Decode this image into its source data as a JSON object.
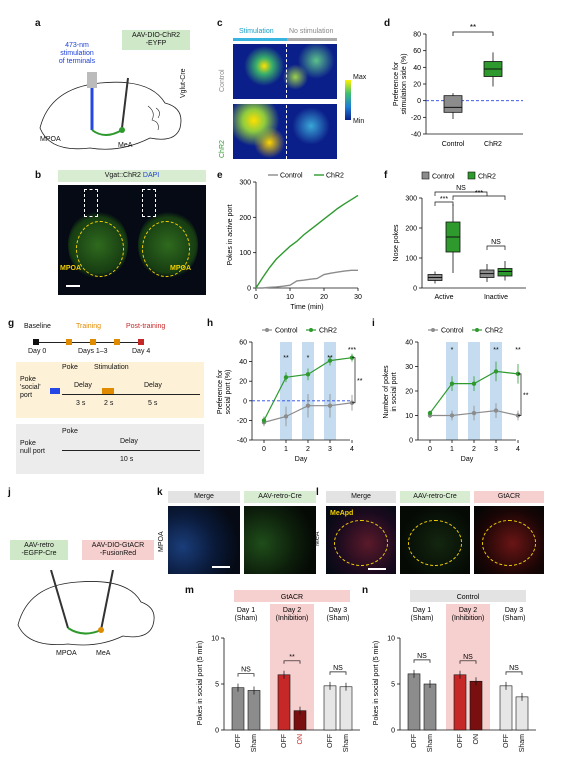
{
  "panel_letters": [
    "a",
    "b",
    "c",
    "d",
    "e",
    "f",
    "g",
    "h",
    "i",
    "j",
    "k",
    "l",
    "m",
    "n"
  ],
  "a": {
    "stim_label": "473-nm\nstimulation\nof terminals",
    "virus": "AAV-DIO-ChR2\n-EYFP",
    "mouse": "Vglut-Cre",
    "mpoa": "MPOA",
    "mea": "MeA"
  },
  "b": {
    "header_a": "Vgat::ChR2",
    "header_b": "DAPI",
    "left": "MPOA",
    "right": "MPOA"
  },
  "c": {
    "stim": "Stimulation",
    "nostim": "No stimulation",
    "row1": "Control",
    "row2": "ChR2",
    "cb_max": "Max",
    "cb_min": "Min"
  },
  "d": {
    "ylabel": "Preference for\nstimulation side (%)",
    "sig": "**",
    "colors": {
      "control": "#8c8c8c",
      "chr2": "#2e9a2e"
    }
  },
  "e": {
    "ylabel": "Pokes in active port",
    "xlabel": "Time (min)"
  },
  "f": {
    "ylabel": "Nose pokes",
    "legend": [
      "Control",
      "ChR2"
    ],
    "sig": [
      "NS",
      "***",
      "***",
      "NS"
    ],
    "groups": [
      "Active",
      "Inactive"
    ]
  },
  "g": {
    "baseline": "Baseline",
    "training": "Training",
    "post": "Post-training",
    "day0": "Day 0",
    "days13": "Days 1–3",
    "day4": "Day 4",
    "poke": "Poke",
    "stimulation": "Stimulation",
    "delay": "Delay",
    "social_port": "Poke\n'social'\nport",
    "null_port": "Poke\nnull port",
    "t3": "3 s",
    "t2": "2 s",
    "t5": "5 s",
    "t10": "10 s"
  },
  "h": {
    "ylabel": "Preference for\nsocial port (%)",
    "xlabel": "Day",
    "legend": [
      "Control",
      "ChR2"
    ],
    "sig": [
      "**",
      "*",
      "**",
      "***"
    ],
    "side_sig": "**"
  },
  "i": {
    "ylabel": "Number of pokes\nin social port",
    "xlabel": "Day",
    "legend": [
      "Control",
      "ChR2"
    ],
    "sig": [
      "*",
      "**",
      "**"
    ],
    "side_sig": "**"
  },
  "j": {
    "virus1": "AAV-retro\n-EGFP-Cre",
    "virus2": "AAV-DIO-GtACR\n-FusionRed",
    "mpoa": "MPOA",
    "mea": "MeA"
  },
  "k": {
    "merge": "Merge",
    "channel": "AAV-retro-Cre",
    "region": "MPOA"
  },
  "l": {
    "merge": "Merge",
    "channel1": "AAV-retro-Cre",
    "channel2": "GtACR",
    "region": "MeA",
    "sub": "MeApd"
  },
  "m": {
    "title": "GtACR",
    "ylabel": "Pokes in social port (5 min)",
    "days": [
      "Day 1\n(Sham)",
      "Day 2\n(Inhibition)",
      "Day 3\n(Sham)"
    ],
    "xticks": [
      "OFF",
      "Sham",
      "OFF",
      "ON",
      "OFF",
      "Sham"
    ],
    "sig": [
      "NS",
      "**",
      "NS"
    ]
  },
  "n": {
    "title": "Control",
    "ylabel": "Pokes in social port (5 min)",
    "days": [
      "Day 1\n(Sham)",
      "Day 2\n(Inhibition)",
      "Day 3\n(Sham)"
    ],
    "xticks": [
      "OFF",
      "Sham",
      "OFF",
      "ON",
      "OFF",
      "Sham"
    ],
    "sig": [
      "NS",
      "NS",
      "NS"
    ]
  },
  "chart_data": [
    {
      "panel": "d",
      "type": "box",
      "categories": [
        "Control",
        "ChR2"
      ],
      "boxes": [
        {
          "min": -22,
          "q1": -14,
          "median": -8,
          "q3": 6,
          "max": 9
        },
        {
          "min": 17,
          "q1": 29,
          "median": 38,
          "q3": 47,
          "max": 58
        }
      ],
      "ylim": [
        -40,
        80
      ],
      "yticks": [
        -40,
        -20,
        0,
        20,
        40,
        60,
        80
      ]
    },
    {
      "panel": "e",
      "type": "line",
      "xlim": [
        0,
        30
      ],
      "ylim": [
        0,
        300
      ],
      "xticks": [
        0,
        10,
        20,
        30
      ],
      "yticks": [
        0,
        100,
        200,
        300
      ],
      "series": [
        {
          "name": "Control",
          "x": [
            0,
            2,
            4,
            6,
            8,
            10,
            12,
            14,
            16,
            18,
            20,
            22,
            24,
            26,
            28,
            30
          ],
          "y": [
            0,
            0,
            2,
            3,
            5,
            8,
            20,
            22,
            25,
            27,
            38,
            42,
            45,
            48,
            50,
            50
          ]
        },
        {
          "name": "ChR2",
          "x": [
            0,
            2,
            4,
            6,
            8,
            10,
            12,
            14,
            16,
            18,
            20,
            22,
            24,
            26,
            28,
            30
          ],
          "y": [
            0,
            30,
            58,
            82,
            100,
            118,
            132,
            150,
            165,
            180,
            195,
            210,
            225,
            238,
            250,
            262
          ]
        }
      ]
    },
    {
      "panel": "f",
      "type": "box",
      "categories": [
        "Active",
        "Inactive"
      ],
      "ylim": [
        0,
        300
      ],
      "yticks": [
        0,
        100,
        200,
        300
      ],
      "series": [
        {
          "name": "Control",
          "boxes": [
            {
              "min": 15,
              "q1": 25,
              "median": 35,
              "q3": 45,
              "max": 55
            },
            {
              "min": 20,
              "q1": 35,
              "median": 48,
              "q3": 60,
              "max": 80
            }
          ]
        },
        {
          "name": "ChR2",
          "boxes": [
            {
              "min": 50,
              "q1": 120,
              "median": 170,
              "q3": 220,
              "max": 280
            },
            {
              "min": 25,
              "q1": 40,
              "median": 55,
              "q3": 65,
              "max": 90
            }
          ]
        }
      ]
    },
    {
      "panel": "h",
      "type": "line",
      "x": [
        0,
        1,
        2,
        3,
        4
      ],
      "ylim": [
        -40,
        60
      ],
      "yticks": [
        -40,
        -20,
        0,
        20,
        40,
        60
      ],
      "series": [
        {
          "name": "Control",
          "y": [
            -22,
            -16,
            -5,
            -5,
            -2
          ],
          "err": [
            4,
            10,
            12,
            12,
            8
          ]
        },
        {
          "name": "ChR2",
          "y": [
            -20,
            24,
            27,
            41,
            44
          ],
          "err": [
            4,
            5,
            6,
            5,
            4
          ]
        }
      ]
    },
    {
      "panel": "i",
      "type": "line",
      "x": [
        0,
        1,
        2,
        3,
        4
      ],
      "ylim": [
        0,
        40
      ],
      "yticks": [
        0,
        10,
        20,
        30,
        40
      ],
      "series": [
        {
          "name": "Control",
          "y": [
            10,
            10,
            11,
            12,
            10
          ],
          "err": [
            1,
            2,
            3,
            3,
            2
          ]
        },
        {
          "name": "ChR2",
          "y": [
            11,
            23,
            23,
            28,
            27
          ],
          "err": [
            1,
            3,
            3,
            4,
            4
          ]
        }
      ]
    },
    {
      "panel": "m",
      "type": "bar",
      "categories": [
        "OFF",
        "Sham",
        "OFF",
        "ON",
        "OFF",
        "Sham"
      ],
      "values": [
        4.6,
        4.3,
        6.0,
        2.1,
        4.8,
        4.7
      ],
      "ylim": [
        0,
        10
      ],
      "yticks": [
        0,
        5,
        10
      ]
    },
    {
      "panel": "n",
      "type": "bar",
      "categories": [
        "OFF",
        "Sham",
        "OFF",
        "ON",
        "OFF",
        "Sham"
      ],
      "values": [
        6.1,
        5.0,
        6.0,
        5.3,
        4.8,
        3.6
      ],
      "ylim": [
        0,
        10
      ],
      "yticks": [
        0,
        5,
        10
      ]
    }
  ]
}
